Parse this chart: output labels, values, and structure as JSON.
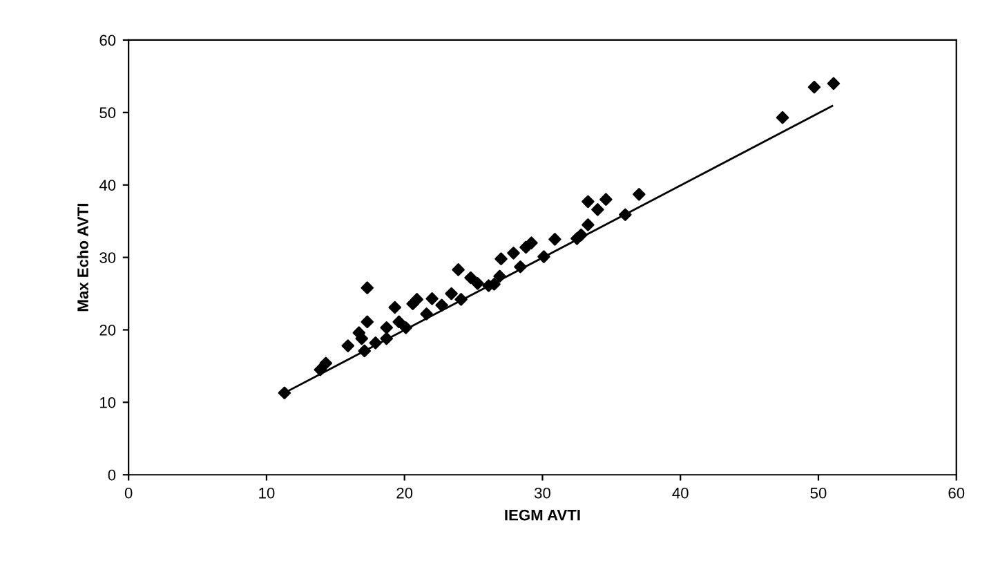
{
  "chart_data": {
    "type": "scatter",
    "xlabel": "IEGM AVTI",
    "ylabel": "Max Echo AVTI",
    "xlim": [
      0,
      60
    ],
    "ylim": [
      0,
      60
    ],
    "xticks": [
      0,
      10,
      20,
      30,
      40,
      50,
      60
    ],
    "yticks": [
      0,
      10,
      20,
      30,
      40,
      50,
      60
    ],
    "grid": false,
    "legend": false,
    "series": [
      {
        "color": "#000000",
        "marker": "diamond",
        "x": [
          11.3,
          13.9,
          14.3,
          15.9,
          16.9,
          16.7,
          17.3,
          17.3,
          17.1,
          17.9,
          18.7,
          18.7,
          19.3,
          19.6,
          20.1,
          20.6,
          20.9,
          21.6,
          22.0,
          22.7,
          23.4,
          24.1,
          23.9,
          24.8,
          25.3,
          26.1,
          26.5,
          26.9,
          27.0,
          27.9,
          28.4,
          28.8,
          29.2,
          30.1,
          30.9,
          32.5,
          32.8,
          33.3,
          33.3,
          34.0,
          34.6,
          36.0,
          37.0,
          47.4,
          49.7,
          51.1
        ],
        "values": [
          11.3,
          14.5,
          15.4,
          17.8,
          18.8,
          19.6,
          21.1,
          25.8,
          17.1,
          18.2,
          18.8,
          20.3,
          23.1,
          21.1,
          20.3,
          23.6,
          24.2,
          22.2,
          24.3,
          23.4,
          25.0,
          24.2,
          28.3,
          27.2,
          26.4,
          26.1,
          26.3,
          27.4,
          29.8,
          30.6,
          28.7,
          31.4,
          32.0,
          30.1,
          32.5,
          32.6,
          33.1,
          34.5,
          37.7,
          36.6,
          38.0,
          35.9,
          38.7,
          49.3,
          53.5,
          54.0
        ]
      },
      {
        "type": "line",
        "color": "#000000",
        "x": [
          11.3,
          51.0
        ],
        "values": [
          11.3,
          50.9
        ]
      }
    ]
  }
}
